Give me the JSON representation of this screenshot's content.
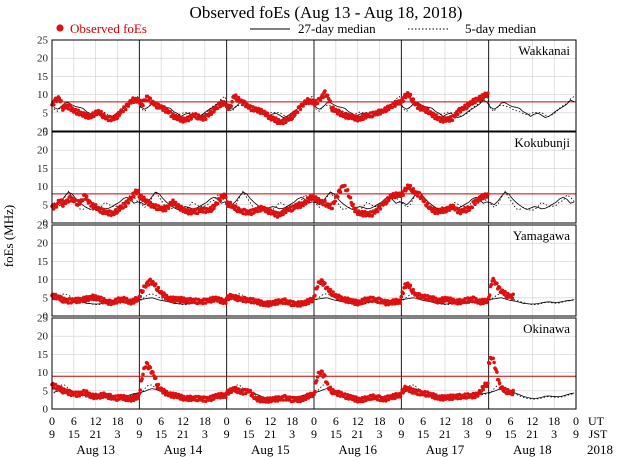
{
  "chart_data": {
    "type": "scatter",
    "title": "Observed foEs (Aug 13 - Aug 18, 2018)",
    "ylabel": "foEs (MHz)",
    "ylim": [
      0,
      25
    ],
    "yticks": [
      "0",
      "5",
      "10",
      "15",
      "20",
      "25"
    ],
    "legend": {
      "observed": "Observed foEs",
      "median27": "27-day median",
      "median5": "5-day median"
    },
    "colors": {
      "observed": "#dd1111",
      "threshold": "#cc0000",
      "grid": "#cfcfcf",
      "axis": "#000000"
    },
    "x_axis": {
      "ut_label": "UT",
      "jst_label": "JST",
      "ut_ticks": [
        "0",
        "6",
        "12",
        "18",
        "0",
        "6",
        "12",
        "18",
        "0",
        "6",
        "12",
        "18",
        "0",
        "6",
        "12",
        "18",
        "0",
        "6",
        "12",
        "18",
        "0",
        "6",
        "12",
        "18",
        "0"
      ],
      "jst_ticks": [
        "9",
        "15",
        "21",
        "3",
        "9",
        "15",
        "21",
        "3",
        "9",
        "15",
        "21",
        "3",
        "9",
        "15",
        "21",
        "3",
        "9",
        "15",
        "21",
        "3",
        "9",
        "15",
        "21",
        "3",
        "9"
      ],
      "days": [
        "Aug 13",
        "Aug 14",
        "Aug 15",
        "Aug 16",
        "Aug 17",
        "Aug 18"
      ],
      "year": "2018"
    },
    "panels": [
      {
        "station": "Wakkanai",
        "threshold": 8,
        "observed_hourly": [
          [
            7.2,
            8.4,
            9.1,
            6.3,
            6.8,
            6.5,
            5.6,
            5.2,
            4.6,
            4.3,
            4.1,
            4.3,
            4.8,
            5.2,
            4.3,
            3.6,
            3.4,
            3.5,
            4.1,
            5.3,
            6.2,
            7.4,
            8.6,
            8.3
          ],
          [
            7.9,
            7.6,
            9.4,
            8.4,
            7.5,
            6.8,
            6.5,
            5.9,
            5.5,
            4.3,
            3.6,
            3.3,
            3.1,
            3.3,
            3.6,
            4.4,
            3.9,
            3.5,
            3.6,
            4.6,
            5.4,
            6.1,
            7.1,
            7.7
          ],
          [
            6.7,
            6.4,
            9.7,
            8.8,
            8.2,
            7.5,
            6.7,
            6.1,
            5.8,
            5.5,
            5.4,
            4.6,
            3.5,
            3.2,
            2.7,
            2.5,
            2.8,
            3.3,
            3.9,
            4.9,
            6.3,
            7.4,
            8.4,
            7.9
          ],
          [
            7.3,
            8.2,
            9.2,
            10.4,
            9.1,
            6.1,
            5.5,
            5.0,
            4.5,
            4.1,
            3.8,
            3.6,
            3.4,
            3.6,
            4.0,
            4.2,
            4.5,
            4.9,
            5.2,
            5.6,
            6.1,
            6.5,
            7.2,
            8.0
          ],
          [
            8.1,
            9.4,
            10.2,
            8.6,
            7.3,
            6.4,
            6.1,
            5.6,
            4.8,
            4.1,
            3.7,
            3.1,
            3.0,
            3.1,
            3.5,
            4.7,
            5.6,
            6.2,
            6.8,
            7.6,
            8.2,
            8.9,
            9.2,
            9.8
          ],
          [
            null,
            null,
            null,
            null,
            null,
            null,
            null,
            null,
            null,
            null,
            null,
            null,
            null,
            null,
            null,
            null,
            null,
            null,
            null,
            null,
            null,
            null,
            null,
            null
          ]
        ],
        "median27_hourly": [
          6.5,
          6.0,
          6.6,
          7.7,
          7.8,
          7.2,
          6.7,
          6.5,
          6.2,
          5.3,
          4.8,
          4.0,
          4.6,
          4.9,
          4.4,
          3.7,
          4.0,
          4.7,
          5.5,
          6.1,
          6.7,
          7.4,
          8.5,
          8.0
        ],
        "median5_hourly": [
          6.1,
          5.4,
          6.8,
          7.1,
          6.9,
          6.6,
          6.0,
          5.6,
          5.3,
          4.8,
          4.5,
          4.7,
          5.2,
          5.0,
          5.1,
          4.4,
          4.0,
          4.5,
          5.1,
          6.3,
          7.0,
          7.6,
          8.8,
          9.5
        ]
      },
      {
        "station": "Kokubunji",
        "threshold": 8,
        "observed_hourly": [
          [
            4.6,
            4.4,
            6.2,
            5.2,
            5.9,
            6.8,
            6.3,
            5.4,
            5.8,
            7.5,
            6.1,
            4.9,
            4.4,
            3.5,
            3.2,
            3.0,
            2.7,
            2.7,
            3.5,
            4.2,
            4.9,
            6.1,
            7.3,
            8.4
          ],
          [
            7.2,
            6.8,
            6.1,
            5.1,
            4.6,
            4.2,
            3.9,
            3.8,
            4.6,
            5.9,
            5.1,
            4.2,
            3.8,
            3.3,
            3.0,
            3.1,
            3.2,
            3.6,
            3.5,
            3.6,
            3.9,
            5.0,
            6.4,
            7.6
          ],
          [
            5.4,
            5.0,
            4.2,
            3.7,
            3.3,
            3.1,
            2.9,
            3.0,
            3.4,
            3.8,
            4.2,
            3.5,
            3.0,
            2.5,
            2.2,
            2.6,
            3.3,
            3.8,
            3.9,
            4.6,
            4.8,
            5.3,
            6.1,
            6.8
          ],
          [
            6.8,
            6.4,
            5.9,
            5.4,
            4.6,
            4.5,
            6.8,
            8.6,
            10.5,
            9.2,
            6.4,
            3.9,
            3.0,
            2.7,
            2.5,
            2.3,
            2.5,
            3.3,
            4.2,
            5.4,
            6.0,
            7.2,
            7.5,
            7.9
          ],
          [
            7.6,
            8.9,
            10.2,
            9.1,
            8.3,
            7.7,
            6.4,
            5.1,
            3.9,
            3.3,
            3.2,
            3.6,
            3.3,
            3.8,
            4.6,
            3.9,
            3.0,
            3.4,
            3.7,
            3.9,
            5.6,
            6.3,
            7.1,
            7.4
          ],
          [
            null,
            null,
            null,
            null,
            null,
            null,
            null,
            null,
            null,
            null,
            null,
            null,
            null,
            null,
            null,
            null,
            null,
            null,
            null,
            null,
            null,
            null,
            null,
            null
          ]
        ],
        "median27_hourly": [
          5.6,
          5.0,
          6.0,
          7.3,
          8.5,
          8.0,
          6.7,
          5.7,
          4.9,
          4.2,
          3.7,
          4.1,
          4.5,
          4.3,
          3.9,
          4.0,
          4.5,
          5.1,
          5.7,
          6.6,
          7.1,
          6.5,
          5.4,
          5.8
        ],
        "median5_hourly": [
          5.3,
          4.3,
          5.1,
          7.0,
          8.7,
          7.0,
          5.6,
          3.9,
          3.7,
          4.3,
          3.8,
          3.5,
          3.6,
          4.4,
          5.7,
          5.2,
          4.5,
          4.6,
          4.8,
          5.8,
          6.2,
          7.7,
          7.1,
          5.9
        ]
      },
      {
        "station": "Yamagawa",
        "threshold": null,
        "observed_hourly": [
          [
            5.6,
            5.3,
            4.9,
            4.4,
            4.1,
            4.2,
            4.4,
            4.3,
            4.2,
            4.6,
            4.9,
            5.3,
            4.9,
            4.7,
            4.3,
            4.0,
            3.7,
            3.8,
            4.3,
            4.4,
            4.5,
            4.1,
            3.9,
            4.4
          ],
          [
            5.3,
            7.4,
            8.8,
            9.5,
            8.9,
            7.5,
            6.3,
            5.5,
            4.9,
            4.6,
            4.5,
            4.4,
            4.6,
            4.3,
            4.2,
            4.1,
            4.0,
            3.9,
            4.1,
            4.4,
            4.5,
            4.6,
            4.3,
            4.1
          ],
          [
            4.9,
            5.3,
            5.1,
            4.8,
            4.7,
            4.5,
            4.4,
            4.2,
            3.9,
            3.7,
            3.5,
            3.4,
            3.3,
            3.5,
            3.9,
            4.1,
            4.1,
            3.7,
            3.4,
            3.2,
            3.3,
            3.6,
            3.8,
            4.2
          ],
          [
            5.3,
            8.6,
            9.8,
            8.4,
            7.1,
            6.2,
            5.5,
            5.0,
            4.7,
            4.4,
            4.0,
            3.8,
            3.7,
            4.0,
            4.3,
            4.5,
            4.6,
            4.4,
            4.3,
            4.0,
            3.6,
            3.5,
            3.9,
            4.1
          ],
          [
            5.4,
            8.2,
            8.6,
            7.0,
            5.9,
            5.5,
            5.3,
            5.0,
            4.8,
            4.6,
            4.2,
            4.4,
            4.5,
            4.4,
            4.2,
            4.0,
            3.9,
            4.0,
            4.3,
            4.5,
            4.6,
            4.1,
            3.9,
            4.0
          ],
          [
            4.9,
            10.2,
            9.0,
            7.2,
            6.5,
            5.7,
            5.4,
            null,
            null,
            null,
            null,
            null,
            null,
            null,
            null,
            null,
            null,
            null,
            null,
            null,
            null,
            null,
            null,
            null
          ]
        ],
        "median27_hourly": [
          4.6,
          4.7,
          4.9,
          5.0,
          4.7,
          4.4,
          4.2,
          4.0,
          3.8,
          3.5,
          3.4,
          3.3,
          3.3,
          3.4,
          3.6,
          3.8,
          3.9,
          3.8,
          3.7,
          3.8,
          4.0,
          4.2,
          4.3,
          4.5
        ],
        "median5_hourly": [
          4.4,
          5.2,
          5.9,
          6.1,
          5.7,
          5.1,
          4.6,
          4.3,
          4.0,
          3.7,
          3.4,
          3.2,
          3.1,
          3.2,
          3.4,
          3.7,
          3.8,
          3.6,
          3.5,
          3.6,
          3.9,
          4.1,
          4.2,
          4.4
        ]
      },
      {
        "station": "Okinawa",
        "threshold": 9,
        "observed_hourly": [
          [
            6.7,
            6.1,
            5.6,
            5.0,
            4.8,
            4.4,
            4.3,
            4.0,
            4.1,
            4.6,
            4.2,
            3.6,
            3.4,
            3.3,
            3.9,
            3.7,
            3.4,
            3.1,
            3.0,
            3.2,
            3.0,
            2.9,
            2.8,
            3.1
          ],
          [
            4.2,
            10.1,
            12.6,
            10.8,
            9.4,
            6.4,
            5.3,
            4.6,
            4.2,
            3.8,
            3.6,
            3.3,
            3.1,
            3.0,
            2.9,
            2.8,
            2.9,
            2.8,
            2.7,
            2.9,
            3.0,
            3.4,
            3.6,
            3.8
          ],
          [
            4.5,
            4.9,
            5.4,
            5.1,
            4.6,
            4.8,
            5.1,
            4.0,
            2.7,
            2.6,
            2.6,
            2.5,
            2.4,
            2.6,
            2.8,
            3.0,
            3.1,
            2.8,
            2.6,
            2.5,
            2.6,
            2.9,
            3.4,
            3.7
          ],
          [
            3.9,
            9.4,
            10.3,
            8.6,
            5.9,
            4.8,
            4.4,
            4.2,
            4.0,
            3.4,
            3.1,
            2.8,
            2.6,
            2.6,
            2.7,
            2.9,
            3.3,
            3.2,
            3.0,
            2.7,
            2.9,
            3.1,
            3.4,
            3.9
          ],
          [
            4.5,
            5.6,
            5.3,
            5.0,
            4.7,
            4.5,
            4.3,
            4.1,
            3.8,
            3.5,
            3.3,
            3.1,
            3.0,
            3.1,
            3.3,
            3.5,
            3.4,
            3.4,
            3.6,
            3.5,
            3.7,
            4.1,
            5.2,
            6.5
          ],
          [
            12.6,
            14.5,
            10.8,
            6.5,
            5.3,
            4.8,
            4.5,
            null,
            null,
            null,
            null,
            null,
            null,
            null,
            null,
            null,
            null,
            null,
            null,
            null,
            null,
            null,
            null,
            null
          ]
        ],
        "median27_hourly": [
          4.6,
          4.9,
          5.3,
          5.6,
          5.4,
          5.0,
          4.6,
          4.3,
          3.9,
          3.5,
          3.2,
          3.0,
          2.9,
          3.0,
          3.2,
          3.5,
          3.6,
          3.5,
          3.4,
          3.4,
          3.6,
          3.9,
          4.2,
          4.4
        ],
        "median5_hourly": [
          4.3,
          5.6,
          6.6,
          6.6,
          5.7,
          5.0,
          4.4,
          4.0,
          3.6,
          3.2,
          2.9,
          2.8,
          2.7,
          2.8,
          3.0,
          3.3,
          3.4,
          3.3,
          3.2,
          3.2,
          3.4,
          3.7,
          4.0,
          4.2
        ]
      }
    ]
  }
}
